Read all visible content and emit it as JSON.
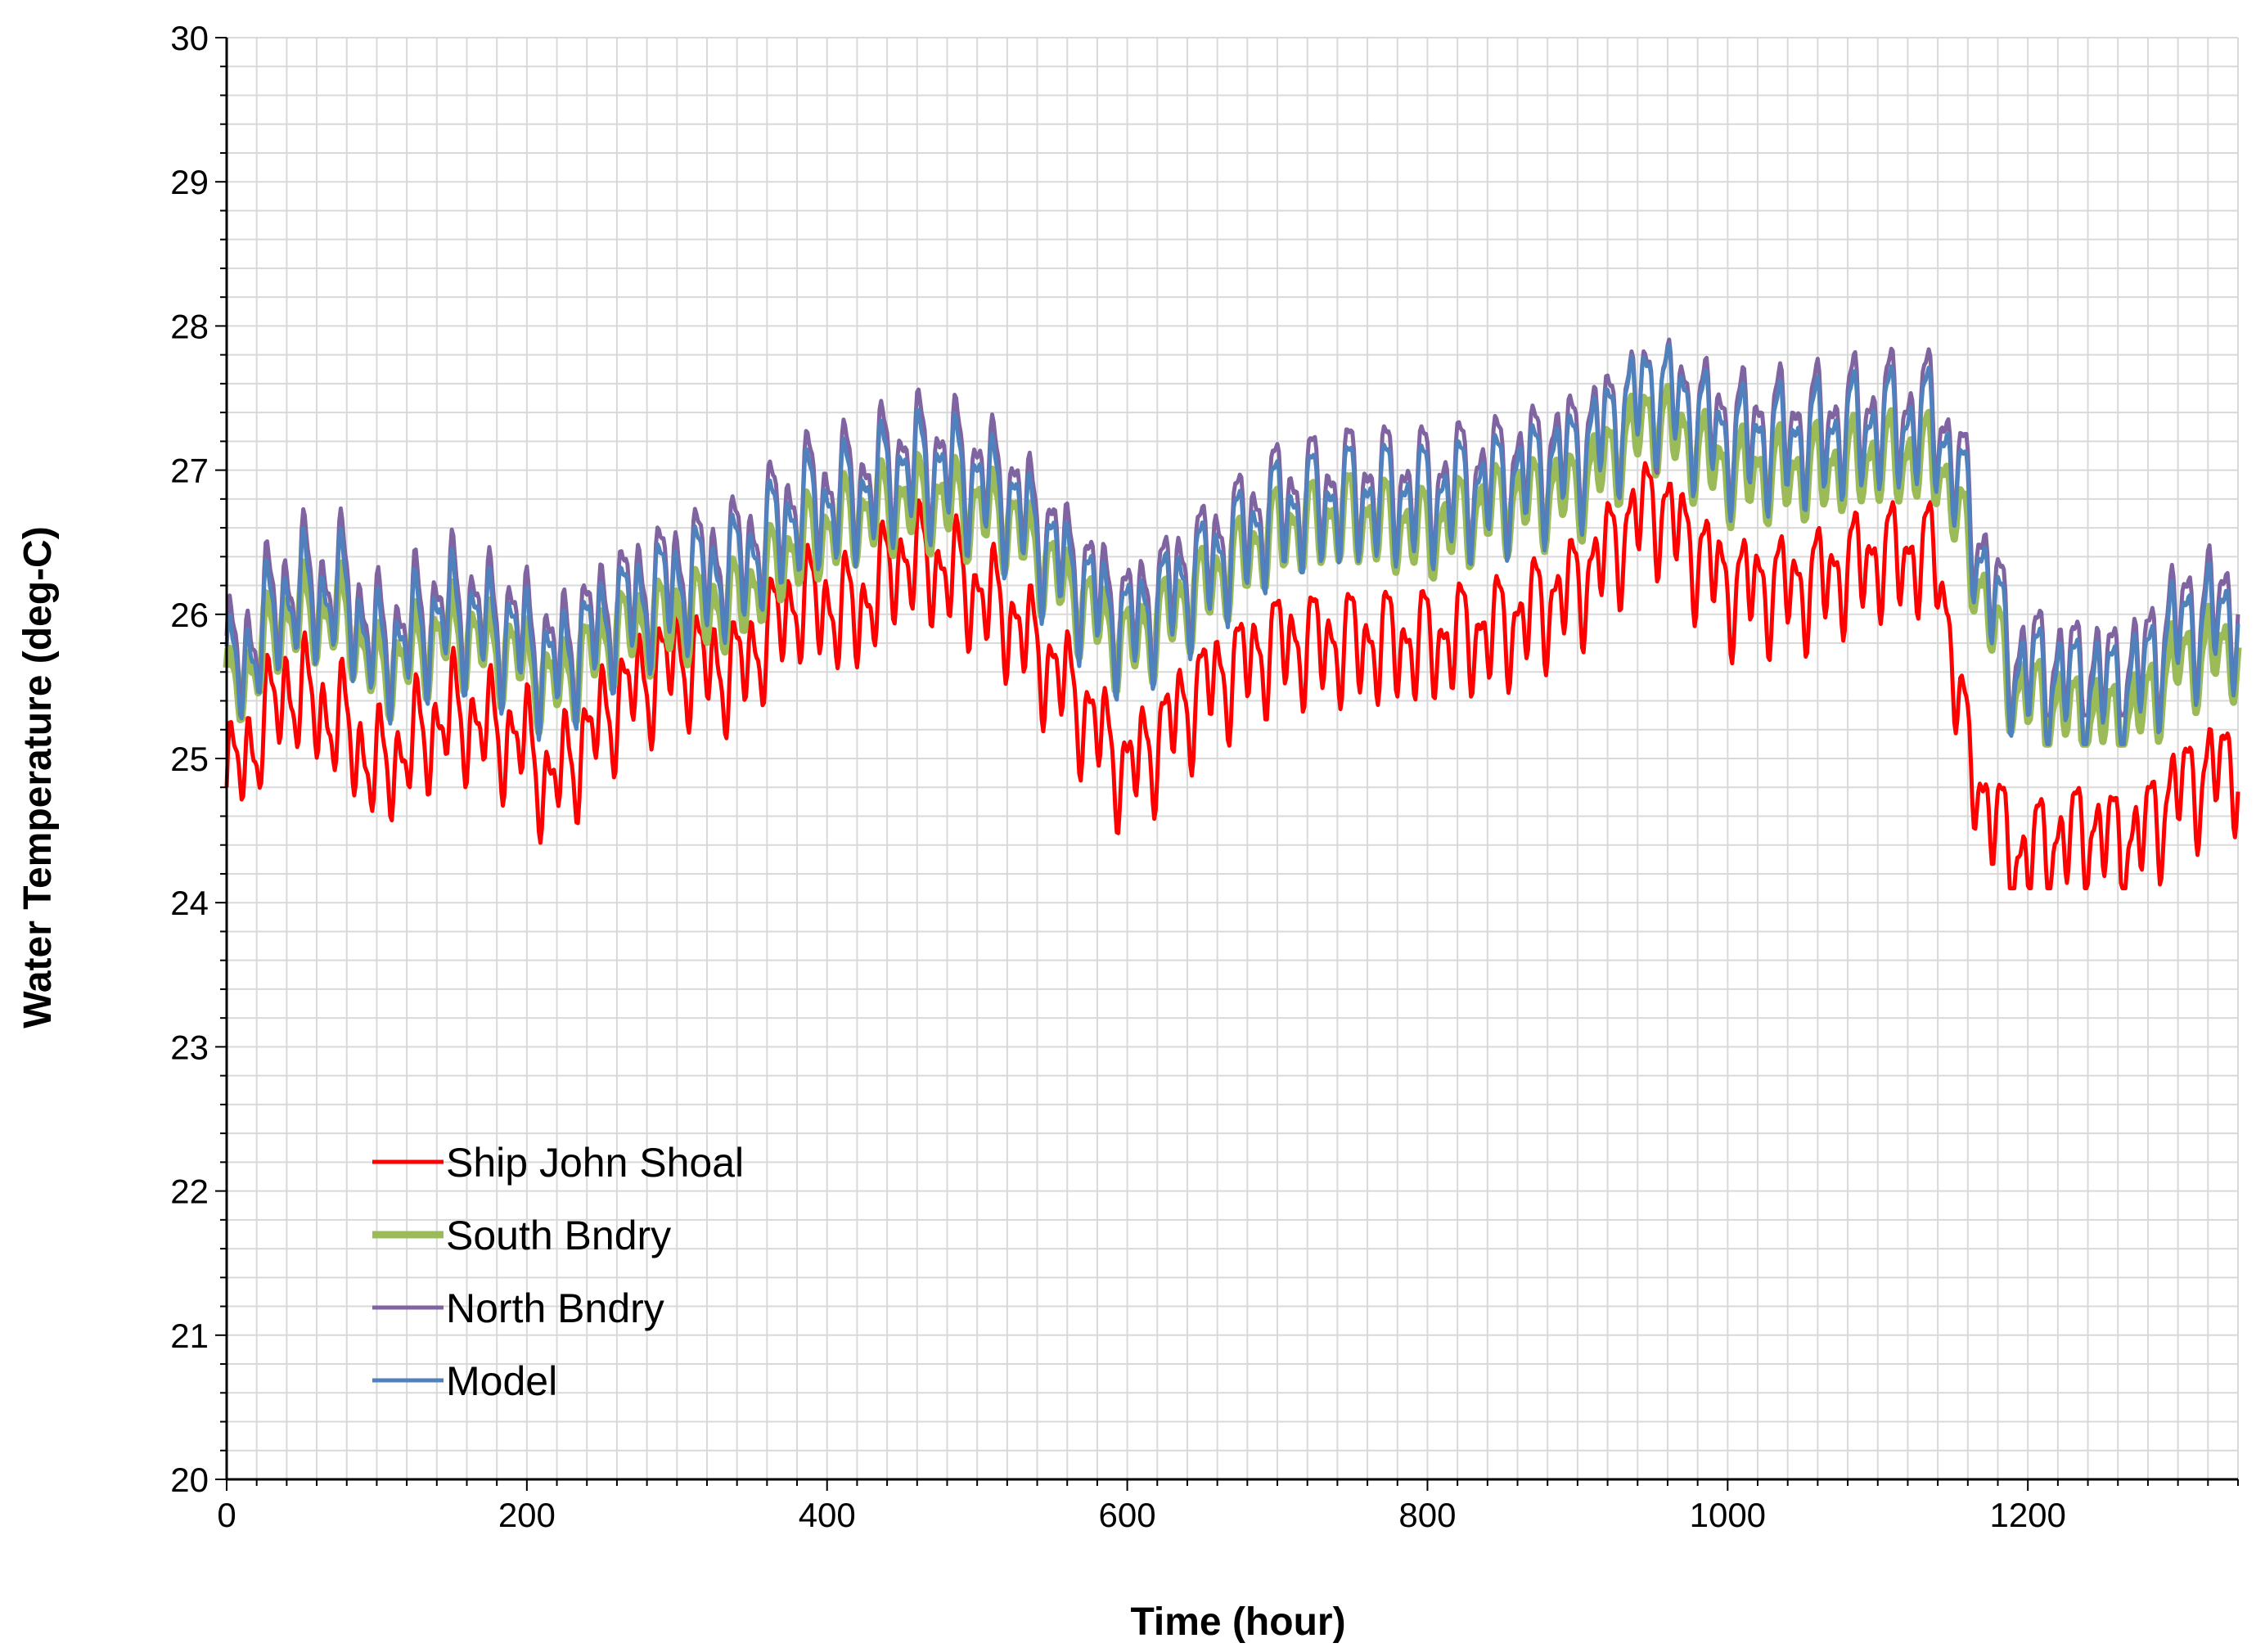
{
  "chart_data": {
    "type": "line",
    "xlabel": "Time (hour)",
    "ylabel": "Water Temperature (deg-C)",
    "xlim": [
      0,
      1340
    ],
    "ylim": [
      20,
      30
    ],
    "x_ticks": [
      0,
      200,
      400,
      600,
      800,
      1000,
      1200
    ],
    "x_tick_labels": [
      "0",
      "200",
      "400",
      "600",
      "800",
      "1000",
      "1200"
    ],
    "y_ticks": [
      20,
      21,
      22,
      23,
      24,
      25,
      26,
      27,
      28,
      29,
      30
    ],
    "y_tick_labels": [
      "20",
      "21",
      "22",
      "23",
      "24",
      "25",
      "26",
      "27",
      "28",
      "29",
      "30"
    ],
    "grid": true,
    "legend_position": "lower-left",
    "colors": {
      "Ship John Shoal": "#ff0000",
      "South Bndry": "#9bbb59",
      "North Bndry": "#8064a2",
      "Model": "#4f81bd"
    },
    "series": [
      {
        "name": "Ship John Shoal",
        "trend": [
          [
            0,
            24.8
          ],
          [
            40,
            25.5
          ],
          [
            80,
            25.2
          ],
          [
            100,
            24.9
          ],
          [
            150,
            25.3
          ],
          [
            200,
            25.1
          ],
          [
            215,
            24.8
          ],
          [
            260,
            25.4
          ],
          [
            300,
            25.7
          ],
          [
            340,
            25.6
          ],
          [
            380,
            26.1
          ],
          [
            420,
            26.0
          ],
          [
            450,
            26.4
          ],
          [
            480,
            26.3
          ],
          [
            520,
            26.0
          ],
          [
            560,
            25.5
          ],
          [
            600,
            24.9
          ],
          [
            650,
            25.5
          ],
          [
            700,
            25.8
          ],
          [
            750,
            25.8
          ],
          [
            800,
            25.8
          ],
          [
            850,
            25.9
          ],
          [
            900,
            26.2
          ],
          [
            950,
            26.8
          ],
          [
            1000,
            26.2
          ],
          [
            1050,
            26.2
          ],
          [
            1100,
            26.4
          ],
          [
            1140,
            26.4
          ],
          [
            1160,
            25.0
          ],
          [
            1190,
            24.3
          ],
          [
            1240,
            24.5
          ],
          [
            1270,
            24.4
          ],
          [
            1300,
            24.8
          ],
          [
            1340,
            25.0
          ]
        ],
        "min": 24.1,
        "max": 27.5
      },
      {
        "name": "South Bndry",
        "trend": [
          [
            0,
            25.4
          ],
          [
            40,
            26.0
          ],
          [
            80,
            26.0
          ],
          [
            100,
            25.6
          ],
          [
            150,
            25.9
          ],
          [
            200,
            25.7
          ],
          [
            215,
            25.5
          ],
          [
            260,
            25.9
          ],
          [
            300,
            26.0
          ],
          [
            340,
            26.1
          ],
          [
            380,
            26.5
          ],
          [
            420,
            26.7
          ],
          [
            450,
            26.8
          ],
          [
            480,
            26.8
          ],
          [
            520,
            26.7
          ],
          [
            560,
            26.2
          ],
          [
            600,
            25.8
          ],
          [
            650,
            26.2
          ],
          [
            700,
            26.6
          ],
          [
            750,
            26.7
          ],
          [
            800,
            26.6
          ],
          [
            850,
            26.8
          ],
          [
            900,
            26.9
          ],
          [
            950,
            27.4
          ],
          [
            1000,
            27.0
          ],
          [
            1050,
            27.0
          ],
          [
            1100,
            27.1
          ],
          [
            1140,
            27.1
          ],
          [
            1160,
            26.5
          ],
          [
            1190,
            25.5
          ],
          [
            1240,
            25.3
          ],
          [
            1270,
            25.3
          ],
          [
            1300,
            25.7
          ],
          [
            1340,
            25.8
          ]
        ],
        "min": 25.1,
        "max": 27.7
      },
      {
        "name": "North Bndry",
        "trend": [
          [
            0,
            25.6
          ],
          [
            40,
            26.2
          ],
          [
            80,
            26.2
          ],
          [
            100,
            25.8
          ],
          [
            150,
            26.1
          ],
          [
            200,
            25.9
          ],
          [
            215,
            25.7
          ],
          [
            260,
            26.1
          ],
          [
            300,
            26.3
          ],
          [
            340,
            26.4
          ],
          [
            380,
            26.8
          ],
          [
            420,
            26.9
          ],
          [
            450,
            27.1
          ],
          [
            480,
            27.1
          ],
          [
            520,
            26.9
          ],
          [
            560,
            26.4
          ],
          [
            600,
            26.0
          ],
          [
            650,
            26.4
          ],
          [
            700,
            26.8
          ],
          [
            750,
            26.9
          ],
          [
            800,
            26.9
          ],
          [
            850,
            27.0
          ],
          [
            900,
            27.2
          ],
          [
            950,
            27.6
          ],
          [
            1000,
            27.3
          ],
          [
            1050,
            27.3
          ],
          [
            1100,
            27.4
          ],
          [
            1140,
            27.4
          ],
          [
            1160,
            26.8
          ],
          [
            1190,
            25.7
          ],
          [
            1240,
            25.6
          ],
          [
            1270,
            25.6
          ],
          [
            1300,
            26.0
          ],
          [
            1340,
            26.1
          ]
        ],
        "min": 25.3,
        "max": 28.8
      },
      {
        "name": "Model",
        "trend": [
          [
            0,
            25.5
          ],
          [
            40,
            26.1
          ],
          [
            80,
            26.1
          ],
          [
            100,
            25.7
          ],
          [
            150,
            26.0
          ],
          [
            200,
            25.8
          ],
          [
            215,
            25.6
          ],
          [
            260,
            26.0
          ],
          [
            300,
            26.2
          ],
          [
            340,
            26.3
          ],
          [
            380,
            26.7
          ],
          [
            420,
            26.8
          ],
          [
            450,
            27.0
          ],
          [
            480,
            27.0
          ],
          [
            520,
            26.8
          ],
          [
            560,
            26.3
          ],
          [
            600,
            25.9
          ],
          [
            650,
            26.3
          ],
          [
            700,
            26.7
          ],
          [
            750,
            26.8
          ],
          [
            800,
            26.8
          ],
          [
            850,
            26.9
          ],
          [
            900,
            27.1
          ],
          [
            950,
            27.6
          ],
          [
            1000,
            27.2
          ],
          [
            1050,
            27.2
          ],
          [
            1100,
            27.3
          ],
          [
            1140,
            27.3
          ],
          [
            1160,
            26.7
          ],
          [
            1190,
            25.6
          ],
          [
            1240,
            25.5
          ],
          [
            1270,
            25.5
          ],
          [
            1300,
            25.9
          ],
          [
            1340,
            26.0
          ]
        ],
        "min": 25.1,
        "max": 28.85
      }
    ]
  }
}
